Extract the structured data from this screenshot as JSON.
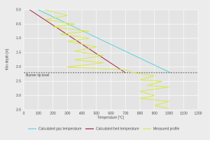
{
  "chart_data": {
    "type": "line",
    "xlabel": "Temperature [°C]",
    "ylabel": "Kiln depth [m]",
    "xlim": [
      0,
      1200
    ],
    "xticks": [
      0,
      100,
      200,
      300,
      400,
      500,
      600,
      700,
      800,
      900,
      1000,
      1100,
      1200
    ],
    "ylim": [
      0,
      3.5
    ],
    "y_inverted": true,
    "yticks": [
      {
        "value": 0,
        "label": "0.0"
      },
      0.5,
      {
        "value": 1,
        "label": "1.0"
      },
      1.5,
      {
        "value": 2,
        "label": "2.0"
      },
      2.5,
      {
        "value": 3,
        "label": "3.0"
      },
      3.5
    ],
    "grid": true,
    "annotation": {
      "text": "Burner tip level",
      "value": 2.2
    },
    "series": [
      {
        "name": "Calculated gas temperature",
        "color": "#5fd3dc",
        "x": [
          100,
          1010
        ],
        "values": [
          0,
          2.2
        ]
      },
      {
        "name": "Calculated bed temperature",
        "color": "#a0203a",
        "x": [
          40,
          700
        ],
        "values": [
          0,
          2.2
        ]
      },
      {
        "name": "Measured profile",
        "color": "#d8e84a",
        "x": [
          150,
          300,
          150,
          350,
          200,
          450,
          250,
          450,
          300,
          500,
          350,
          550,
          350,
          550,
          300,
          700,
          750,
          900,
          800,
          950,
          850,
          1000,
          800,
          900,
          800,
          1000,
          900,
          1000
        ],
        "values": [
          0,
          0.2,
          0.35,
          0.5,
          0.6,
          0.75,
          0.85,
          1.0,
          1.1,
          1.3,
          1.45,
          1.6,
          1.75,
          1.85,
          2.0,
          2.1,
          2.2,
          2.3,
          2.45,
          2.5,
          2.65,
          2.7,
          2.85,
          3.0,
          3.1,
          3.2,
          3.35,
          3.45
        ]
      }
    ]
  }
}
